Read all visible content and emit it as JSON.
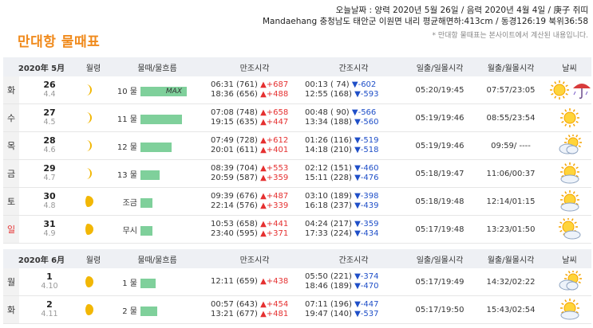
{
  "header": {
    "line1": "오늘날짜 : 양력 2020년 5월 26일 / 음력 2020년 4월 4일 / 庚子 쥐띠",
    "line2": "Mandaehang 충청남도 태안군 이원면 내리 평균해면하:413cm / 동경126:19 북위36:58",
    "note": "* 만대항 물때표는 본사이트에서 계산된 내용입니다."
  },
  "title": "만대항 물때표",
  "columns": [
    "월령",
    "물때/물흐름",
    "만조시각",
    "간조시각",
    "일출/일몰시각",
    "월출/월몰시각",
    "날씨"
  ],
  "table1": {
    "month": "2020年 5月",
    "rows": [
      {
        "dow": "화",
        "red": false,
        "date": "26",
        "lunar": "4.4",
        "moon": "crescent",
        "mul": "10 물",
        "bar": 1.0,
        "bar_label": "MAX",
        "high1": "06:31 (761)",
        "high1_d": "▲+687",
        "high2": "18:36 (656)",
        "high2_d": "▲+488",
        "low1": "00:13 ( 74)",
        "low1_d": "▼-602",
        "low2": "12:55 (168)",
        "low2_d": "▼-593",
        "sun": "05:20/19:45",
        "moonrs": "07:57/23:05",
        "weather": [
          "sun",
          "umbrella"
        ]
      },
      {
        "dow": "수",
        "red": false,
        "date": "27",
        "lunar": "4.5",
        "moon": "crescent",
        "mul": "11 물",
        "bar": 0.9,
        "bar_label": "",
        "high1": "07:08 (748)",
        "high1_d": "▲+658",
        "high2": "19:15 (635)",
        "high2_d": "▲+447",
        "low1": "00:48 ( 90)",
        "low1_d": "▼-566",
        "low2": "13:34 (188)",
        "low2_d": "▼-560",
        "sun": "05:19/19:46",
        "moonrs": "08:55/23:54",
        "weather": [
          "sun"
        ]
      },
      {
        "dow": "목",
        "red": false,
        "date": "28",
        "lunar": "4.6",
        "moon": "crescent",
        "mul": "12 물",
        "bar": 0.67,
        "bar_label": "",
        "high1": "07:49 (728)",
        "high1_d": "▲+612",
        "high2": "20:01 (611)",
        "high2_d": "▲+401",
        "low1": "01:26 (116)",
        "low1_d": "▼-519",
        "low2": "14:18 (210)",
        "low2_d": "▼-518",
        "sun": "05:19/19:46",
        "moonrs": "09:59/ ----",
        "weather": [
          "cloud"
        ]
      },
      {
        "dow": "금",
        "red": false,
        "date": "29",
        "lunar": "4.7",
        "moon": "crescent",
        "mul": "13 물",
        "bar": 0.42,
        "bar_label": "",
        "high1": "08:39 (704)",
        "high1_d": "▲+553",
        "high2": "20:59 (587)",
        "high2_d": "▲+359",
        "low1": "02:12 (151)",
        "low1_d": "▼-460",
        "low2": "15:11 (228)",
        "low2_d": "▼-476",
        "sun": "05:18/19:47",
        "moonrs": "11:06/00:37",
        "weather": [
          "suncloud"
        ]
      },
      {
        "dow": "토",
        "red": false,
        "date": "30",
        "lunar": "4.8",
        "moon": "half",
        "mul": "조금",
        "bar": 0.25,
        "bar_label": "",
        "high1": "09:39 (676)",
        "high1_d": "▲+487",
        "high2": "22:14 (576)",
        "high2_d": "▲+339",
        "low1": "03:10 (189)",
        "low1_d": "▼-398",
        "low2": "16:18 (237)",
        "low2_d": "▼-439",
        "sun": "05:18/19:48",
        "moonrs": "12:14/01:15",
        "weather": [
          "suncloud"
        ]
      },
      {
        "dow": "일",
        "red": true,
        "date": "31",
        "lunar": "4.9",
        "moon": "half",
        "mul": "무시",
        "bar": 0.25,
        "bar_label": "",
        "high1": "10:53 (658)",
        "high1_d": "▲+441",
        "high2": "23:40 (595)",
        "high2_d": "▲+371",
        "low1": "04:24 (217)",
        "low1_d": "▼-359",
        "low2": "17:33 (224)",
        "low2_d": "▼-434",
        "sun": "05:17/19:48",
        "moonrs": "13:23/01:50",
        "weather": [
          "suncloud2"
        ]
      }
    ]
  },
  "table2": {
    "month": "2020年 6月",
    "rows": [
      {
        "dow": "월",
        "red": false,
        "date": "1",
        "lunar": "4.10",
        "moon": "gibbous",
        "mul": "1 물",
        "bar": 0.32,
        "bar_label": "",
        "high1": "12:11 (659)",
        "high1_d": "▲+438",
        "high2": "",
        "high2_d": "",
        "low1": "05:50 (221)",
        "low1_d": "▼-374",
        "low2": "18:46 (189)",
        "low2_d": "▼-470",
        "sun": "05:17/19:49",
        "moonrs": "14:32/02:22",
        "weather": [
          "cloud"
        ]
      },
      {
        "dow": "화",
        "red": false,
        "date": "2",
        "lunar": "4.11",
        "moon": "gibbous",
        "mul": "2 물",
        "bar": 0.37,
        "bar_label": "",
        "high1": "00:57 (643)",
        "high1_d": "▲+454",
        "high2": "13:21 (677)",
        "high2_d": "▲+481",
        "low1": "07:11 (196)",
        "low1_d": "▼-447",
        "low2": "19:47 (140)",
        "low2_d": "▼-537",
        "sun": "05:17/19:50",
        "moonrs": "15:43/02:54",
        "weather": [
          "suncloud"
        ]
      }
    ]
  }
}
